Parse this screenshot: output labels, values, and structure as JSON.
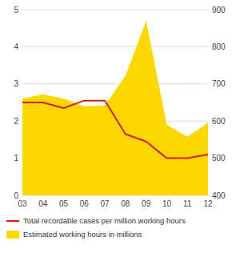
{
  "chart_data": {
    "type": "line",
    "x": [
      2003,
      2004,
      2005,
      2006,
      2007,
      2008,
      2009,
      2010,
      2011,
      2012
    ],
    "xlim": [
      2003,
      2012
    ],
    "xticks": [
      {
        "value": 2003,
        "label": "03"
      },
      {
        "value": 2004,
        "label": "04"
      },
      {
        "value": 2005,
        "label": "05"
      },
      {
        "value": 2006,
        "label": "06"
      },
      {
        "value": 2007,
        "label": "07"
      },
      {
        "value": 2008,
        "label": "08"
      },
      {
        "value": 2009,
        "label": "09"
      },
      {
        "value": 2010,
        "label": "10"
      },
      {
        "value": 2011,
        "label": "11"
      },
      {
        "value": 2012,
        "label": "12"
      }
    ],
    "ylim": [
      0,
      5
    ],
    "yticks": [
      0,
      1,
      2,
      3,
      4,
      5
    ],
    "y2lim": [
      400,
      900
    ],
    "y2ticks": [
      400,
      500,
      600,
      700,
      800,
      900
    ],
    "grid": true,
    "legend": "bottom",
    "series": [
      {
        "name": "Total recordable cases per million working hours",
        "type": "line",
        "color": "#d42020",
        "values": [
          2.5,
          2.5,
          2.35,
          2.55,
          2.55,
          1.65,
          1.45,
          1.0,
          1.0,
          1.1
        ]
      },
      {
        "name": "Estimated working hours in millions",
        "type": "area",
        "axis": "y2",
        "color": "#FFD700",
        "values": [
          660,
          672,
          660,
          640,
          642,
          722,
          870,
          590,
          558,
          595
        ]
      }
    ]
  }
}
